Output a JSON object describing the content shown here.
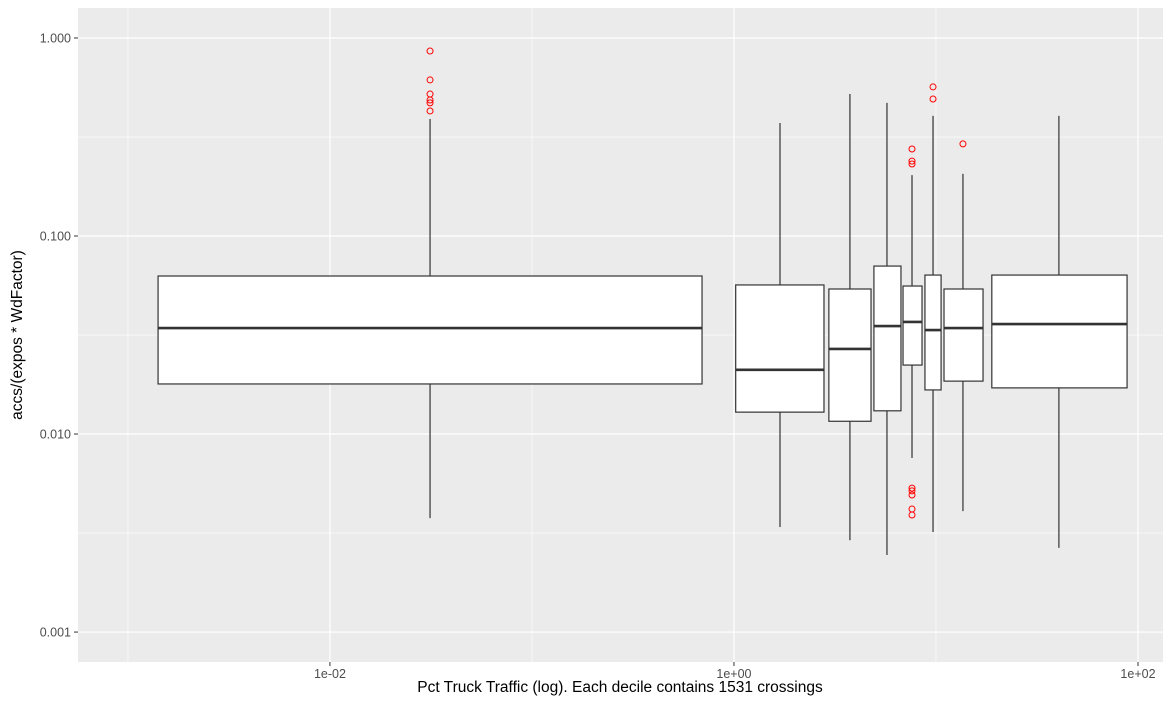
{
  "chart_data": {
    "type": "boxplot",
    "xlabel": "Pct Truck Traffic (log). Each decile contains 1531 crossings",
    "ylabel": "accs/(expos * WdFactor)",
    "log_x": true,
    "log_y": true,
    "grid": true,
    "xlim": [
      0.000566,
      133
    ],
    "ylim": [
      0.000706,
      1.417
    ],
    "xticks": [
      {
        "value": 0.01,
        "label": "1e-02"
      },
      {
        "value": 1,
        "label": "1e+00"
      },
      {
        "value": 100,
        "label": "1e+02"
      }
    ],
    "x_minor_grid": [
      0.001,
      0.1,
      10
    ],
    "yticks": [
      0.001,
      {
        "value": 0.01,
        "label": "0.010"
      },
      {
        "value": 0.1,
        "label": "0.100"
      },
      {
        "value": 1,
        "label": "1.000"
      }
    ],
    "y_minor_grid": [
      0.00316,
      0.0316,
      0.316
    ],
    "box_color": "#333333",
    "box_fill": "#ffffff",
    "outlier_color": "#ff0000",
    "boxes": [
      {
        "x": 0.0313,
        "xmin": 0.00141,
        "xmax": 0.695,
        "ymin": 0.00376,
        "lower": 0.0179,
        "middle": 0.0343,
        "upper": 0.0628,
        "ymax": 0.39,
        "outliers": [
          0.859,
          0.614,
          0.521,
          0.486,
          0.47,
          0.428
        ]
      },
      {
        "x": 1.69,
        "xmin": 1.02,
        "xmax": 2.79,
        "ymin": 0.00339,
        "lower": 0.0129,
        "middle": 0.0211,
        "upper": 0.0566,
        "ymax": 0.372,
        "outliers": []
      },
      {
        "x": 3.75,
        "xmin": 2.95,
        "xmax": 4.77,
        "ymin": 0.00291,
        "lower": 0.0116,
        "middle": 0.0269,
        "upper": 0.054,
        "ymax": 0.521,
        "outliers": []
      },
      {
        "x": 5.72,
        "xmin": 4.93,
        "xmax": 6.71,
        "ymin": 0.00245,
        "lower": 0.0131,
        "middle": 0.0351,
        "upper": 0.0705,
        "ymax": 0.47,
        "outliers": []
      },
      {
        "x": 7.61,
        "xmin": 6.87,
        "xmax": 8.53,
        "ymin": 0.00757,
        "lower": 0.0223,
        "middle": 0.0368,
        "upper": 0.0559,
        "ymax": 0.203,
        "outliers": [
          0.275,
          0.239,
          0.231,
          0.00533,
          0.00516,
          0.00492,
          0.00418,
          0.0039
        ]
      },
      {
        "x": 9.67,
        "xmin": 8.82,
        "xmax": 10.6,
        "ymin": 0.0032,
        "lower": 0.0167,
        "middle": 0.0335,
        "upper": 0.0635,
        "ymax": 0.404,
        "outliers": [
          0.566,
          0.492
        ]
      },
      {
        "x": 13.6,
        "xmin": 10.96,
        "xmax": 17.1,
        "ymin": 0.00408,
        "lower": 0.0185,
        "middle": 0.0343,
        "upper": 0.054,
        "ymax": 0.206,
        "outliers": [
          0.292
        ]
      },
      {
        "x": 40.6,
        "xmin": 18.9,
        "xmax": 88.3,
        "ymin": 0.00266,
        "lower": 0.0171,
        "middle": 0.0359,
        "upper": 0.0635,
        "ymax": 0.404,
        "outliers": []
      }
    ]
  }
}
